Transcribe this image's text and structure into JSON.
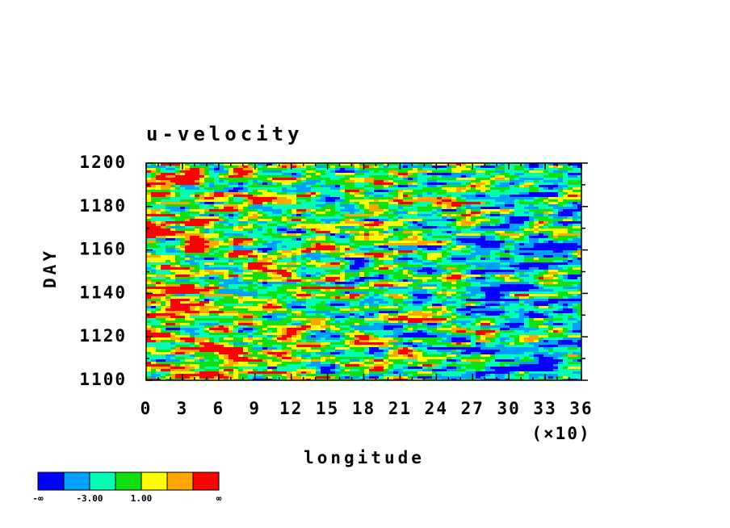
{
  "chart_data": {
    "type": "contour",
    "title": "u-velocity",
    "xlabel": "longitude",
    "ylabel": "DAY",
    "x_multiplier": "(×10)",
    "xlim": [
      0,
      36
    ],
    "xticks": [
      0,
      3,
      6,
      9,
      12,
      15,
      18,
      21,
      24,
      27,
      30,
      33,
      36
    ],
    "ylim": [
      1100,
      1200
    ],
    "yticks": [
      1100,
      1120,
      1140,
      1160,
      1180,
      1200
    ],
    "colorbar": {
      "colors": [
        "#0000ff",
        "#00a0ff",
        "#00ffb4",
        "#10e010",
        "#ffff00",
        "#ffa500",
        "#ff0000"
      ],
      "labels": [
        "-∞",
        null,
        "-3.00",
        null,
        "1.00",
        null,
        null,
        "∞"
      ]
    }
  }
}
